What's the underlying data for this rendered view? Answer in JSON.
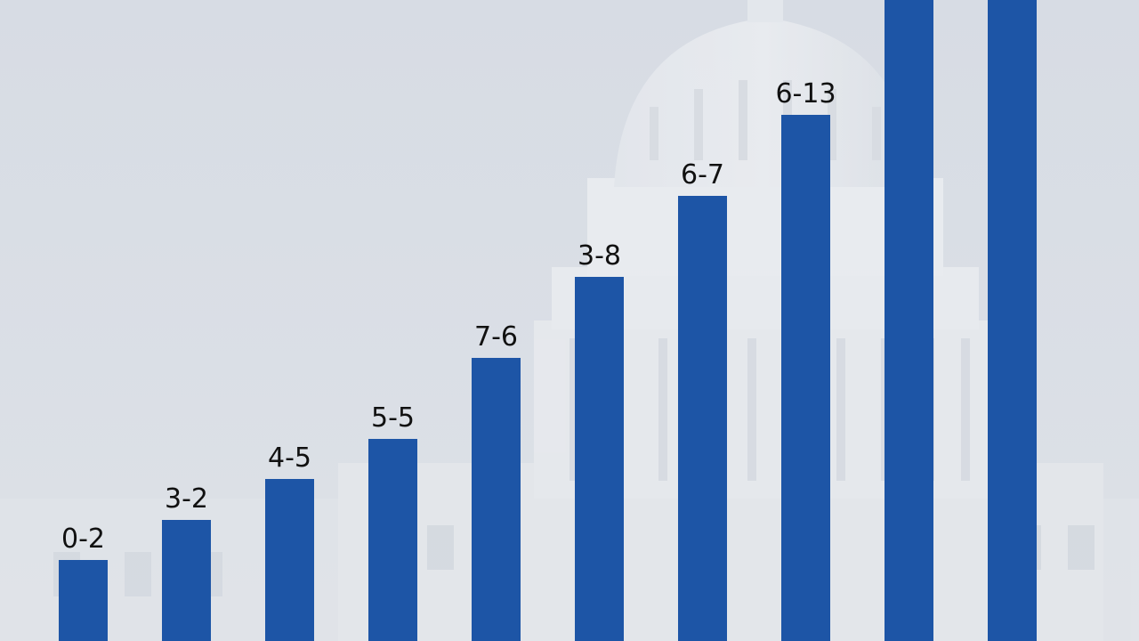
{
  "colors": {
    "bar": "#1d55a6",
    "background": "#d9dee5",
    "label": "#111111"
  },
  "background_image": "capitol-building-dome",
  "chart_data": {
    "type": "bar",
    "categories": [
      "",
      "",
      "",
      "",
      "",
      "",
      "",
      "",
      "",
      ""
    ],
    "values": [
      2,
      3,
      4,
      5,
      7,
      9,
      11,
      13,
      16,
      16
    ],
    "labels": [
      "0-2",
      "3-2",
      "4-5",
      "5-5",
      "7-6",
      "3-8",
      "6-7",
      "6-13",
      "",
      ""
    ],
    "title": "",
    "xlabel": "",
    "ylabel": "",
    "grid": false,
    "legend": "none"
  }
}
